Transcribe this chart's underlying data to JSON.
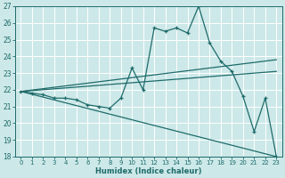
{
  "xlabel": "Humidex (Indice chaleur)",
  "xlim": [
    0,
    23
  ],
  "ylim": [
    18,
    27
  ],
  "yticks": [
    18,
    19,
    20,
    21,
    22,
    23,
    24,
    25,
    26,
    27
  ],
  "xticks": [
    0,
    1,
    2,
    3,
    4,
    5,
    6,
    7,
    8,
    9,
    10,
    11,
    12,
    13,
    14,
    15,
    16,
    17,
    18,
    19,
    20,
    21,
    22,
    23
  ],
  "bg_color": "#cde8e8",
  "line_color": "#1e6b6b",
  "grid_color": "#b8d8d8",
  "main_x": [
    0,
    1,
    2,
    3,
    4,
    5,
    6,
    7,
    8,
    9,
    10,
    11,
    12,
    13,
    14,
    15,
    16,
    17,
    18,
    19,
    20,
    21,
    22,
    23
  ],
  "main_y": [
    21.9,
    21.8,
    21.7,
    21.5,
    21.5,
    21.4,
    21.1,
    21.0,
    20.9,
    21.5,
    23.3,
    22.0,
    25.7,
    25.5,
    25.7,
    25.4,
    27.0,
    24.8,
    23.7,
    23.1,
    21.6,
    19.5,
    21.5,
    18.0
  ],
  "trend1_x": [
    0,
    23
  ],
  "trend1_y": [
    21.9,
    23.8
  ],
  "trend2_x": [
    0,
    23
  ],
  "trend2_y": [
    21.9,
    23.1
  ],
  "trend3_x": [
    0,
    23
  ],
  "trend3_y": [
    21.9,
    18.0
  ]
}
